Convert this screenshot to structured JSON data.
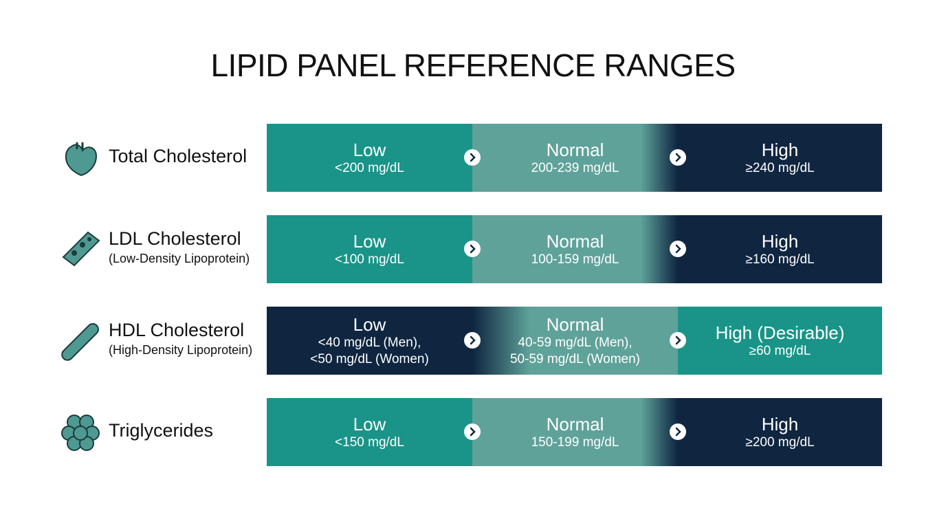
{
  "title": "LIPID PANEL REFERENCE RANGES",
  "rows": [
    {
      "name": "Total Cholesterol",
      "cells": [
        {
          "label": "Low",
          "lines": [
            "<200 mg/dL"
          ],
          "color": "#1a9488"
        },
        {
          "label": "Normal",
          "lines": [
            "200-239 mg/dL"
          ],
          "color": "#5fa29a"
        },
        {
          "label": "High",
          "lines": [
            "≥240 mg/dL"
          ],
          "color": "#0f2540"
        }
      ]
    },
    {
      "name": "LDL Cholesterol",
      "subtitle": "(Low-Density Lipoprotein)",
      "cells": [
        {
          "label": "Low",
          "lines": [
            "<100 mg/dL"
          ],
          "color": "#1a9488"
        },
        {
          "label": "Normal",
          "lines": [
            "100-159 mg/dL"
          ],
          "color": "#5fa29a"
        },
        {
          "label": "High",
          "lines": [
            "≥160 mg/dL"
          ],
          "color": "#0f2540"
        }
      ]
    },
    {
      "name": "HDL Cholesterol",
      "subtitle": "(High-Density Lipoprotein)",
      "cells": [
        {
          "label": "Low",
          "lines": [
            "<40 mg/dL (Men),",
            "<50 mg/dL (Women)"
          ],
          "color": "#0f2540"
        },
        {
          "label": "Normal",
          "lines": [
            "40-59 mg/dL (Men),",
            "50-59 mg/dL (Women)"
          ],
          "color": "#5fa29a"
        },
        {
          "label": "High (Desirable)",
          "lines": [
            "≥60 mg/dL"
          ],
          "color": "#1a9488"
        }
      ]
    },
    {
      "name": "Triglycerides",
      "cells": [
        {
          "label": "Low",
          "lines": [
            "<150 mg/dL"
          ],
          "color": "#1a9488"
        },
        {
          "label": "Normal",
          "lines": [
            "150-199 mg/dL"
          ],
          "color": "#5fa29a"
        },
        {
          "label": "High",
          "lines": [
            "≥200 mg/dL"
          ],
          "color": "#0f2540"
        }
      ]
    }
  ]
}
